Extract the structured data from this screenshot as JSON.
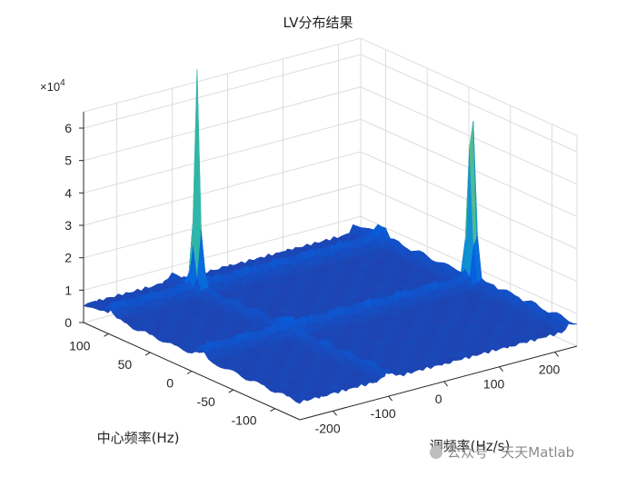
{
  "chart_data": {
    "type": "surface",
    "title": "LV分布结果",
    "xlabel": "调频率(Hz/s)",
    "ylabel": "中心频率(Hz)",
    "zlabel": "",
    "z_multiplier": "×10",
    "z_exponent": "4",
    "x_ticks": [
      "-200",
      "-100",
      "0",
      "100",
      "200"
    ],
    "y_ticks": [
      "100",
      "50",
      "0",
      "-50",
      "-100"
    ],
    "z_ticks": [
      "0",
      "1",
      "2",
      "3",
      "4",
      "5",
      "6"
    ],
    "xlim": [
      -260,
      240
    ],
    "ylim": [
      -130,
      130
    ],
    "zlim": [
      0,
      6.5
    ],
    "grid": true,
    "colormap": "parula",
    "peaks": [
      {
        "chirp_rate": -100,
        "center_freq": 100,
        "z": 6.3
      },
      {
        "chirp_rate": 230,
        "center_freq": -10,
        "z": 6.1
      }
    ]
  },
  "watermark": "公众号 · 天天Matlab"
}
